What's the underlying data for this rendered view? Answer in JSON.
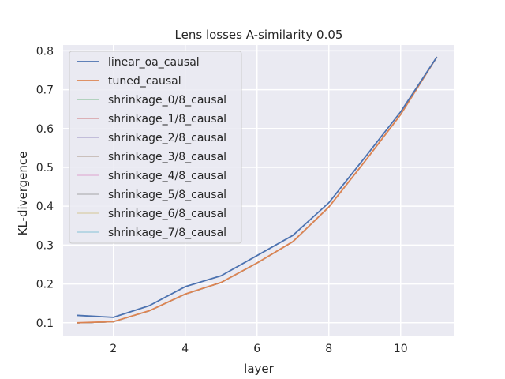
{
  "chart_data": {
    "type": "line",
    "title": "Lens losses A-similarity 0.05",
    "xlabel": "layer",
    "ylabel": "KL-divergence",
    "xlim": [
      0.6,
      11.5
    ],
    "ylim": [
      0.065,
      0.815
    ],
    "xticks": [
      2,
      4,
      6,
      8,
      10
    ],
    "yticks": [
      0.1,
      0.2,
      0.3,
      0.4,
      0.5,
      0.6,
      0.7,
      0.8
    ],
    "grid": true,
    "legend_position": "top-left",
    "x": [
      1,
      2,
      3,
      4,
      5,
      6,
      7,
      8,
      9,
      10,
      11
    ],
    "series": [
      {
        "name": "linear_oa_causal",
        "color": "#4c72b0",
        "width": 1.8,
        "values": [
          0.119,
          0.114,
          0.144,
          0.193,
          0.221,
          0.273,
          0.325,
          0.409,
          0.525,
          0.643,
          0.783
        ]
      },
      {
        "name": "tuned_causal",
        "color": "#dd8452",
        "width": 1.8,
        "values": [
          0.1,
          0.103,
          0.131,
          0.174,
          0.204,
          0.254,
          0.309,
          0.398,
          0.515,
          0.636,
          0.783
        ]
      },
      {
        "name": "shrinkage_0/8_causal",
        "color": "#55a868",
        "width": 0.8,
        "values": [
          0.099,
          0.102,
          0.13,
          0.173,
          0.203,
          0.253,
          0.308,
          0.397,
          0.514,
          0.635,
          0.783
        ]
      },
      {
        "name": "shrinkage_1/8_causal",
        "color": "#c44e52",
        "width": 0.8,
        "values": [
          0.099,
          0.102,
          0.13,
          0.173,
          0.203,
          0.253,
          0.308,
          0.397,
          0.514,
          0.635,
          0.783
        ]
      },
      {
        "name": "shrinkage_2/8_causal",
        "color": "#8172b3",
        "width": 0.8,
        "values": [
          0.099,
          0.102,
          0.13,
          0.173,
          0.203,
          0.253,
          0.308,
          0.397,
          0.514,
          0.635,
          0.783
        ]
      },
      {
        "name": "shrinkage_3/8_causal",
        "color": "#937860",
        "width": 0.8,
        "values": [
          0.099,
          0.102,
          0.13,
          0.173,
          0.203,
          0.253,
          0.308,
          0.397,
          0.514,
          0.635,
          0.783
        ]
      },
      {
        "name": "shrinkage_4/8_causal",
        "color": "#da8bc3",
        "width": 0.8,
        "values": [
          0.099,
          0.102,
          0.13,
          0.173,
          0.203,
          0.253,
          0.308,
          0.397,
          0.514,
          0.635,
          0.783
        ]
      },
      {
        "name": "shrinkage_5/8_causal",
        "color": "#8c8c8c",
        "width": 0.8,
        "values": [
          0.099,
          0.102,
          0.13,
          0.173,
          0.203,
          0.253,
          0.308,
          0.397,
          0.514,
          0.635,
          0.783
        ]
      },
      {
        "name": "shrinkage_6/8_causal",
        "color": "#ccb974",
        "width": 0.8,
        "values": [
          0.099,
          0.102,
          0.13,
          0.173,
          0.203,
          0.253,
          0.308,
          0.397,
          0.514,
          0.635,
          0.783
        ]
      },
      {
        "name": "shrinkage_7/8_causal",
        "color": "#64b5cd",
        "width": 0.8,
        "values": [
          0.099,
          0.102,
          0.13,
          0.173,
          0.203,
          0.253,
          0.308,
          0.397,
          0.514,
          0.635,
          0.783
        ]
      }
    ]
  }
}
